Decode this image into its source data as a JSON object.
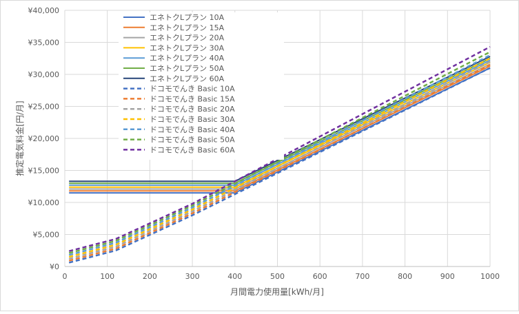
{
  "chart_data": {
    "type": "line",
    "xlabel": "月間電力使用量[kWh/月]",
    "ylabel": "推定電気料金[円/月]",
    "xlim": [
      0,
      1000
    ],
    "ylim": [
      0,
      40000
    ],
    "x_ticks": [
      "0",
      "100",
      "200",
      "300",
      "400",
      "500",
      "600",
      "700",
      "800",
      "900",
      "1000"
    ],
    "y_ticks": [
      "¥0",
      "¥5,000",
      "¥10,000",
      "¥15,000",
      "¥20,000",
      "¥25,000",
      "¥30,000",
      "¥35,000",
      "¥40,000"
    ],
    "grid": true,
    "legend_position": "top-left",
    "series": [
      {
        "name": "エネトクLプラン 10A",
        "color": "#4472C4",
        "dash": false,
        "x": [
          10,
          400,
          1000
        ],
        "values": [
          11500,
          11500,
          31000
        ]
      },
      {
        "name": "エネトクLプラン 15A",
        "color": "#ED7D31",
        "dash": false,
        "x": [
          10,
          400,
          1000
        ],
        "values": [
          11800,
          11800,
          31300
        ]
      },
      {
        "name": "エネトクLプラン 20A",
        "color": "#A5A5A5",
        "dash": false,
        "x": [
          10,
          400,
          1000
        ],
        "values": [
          12100,
          12100,
          31600
        ]
      },
      {
        "name": "エネトクLプラン 30A",
        "color": "#FFC000",
        "dash": false,
        "x": [
          10,
          400,
          1000
        ],
        "values": [
          12400,
          12400,
          31900
        ]
      },
      {
        "name": "エネトクLプラン 40A",
        "color": "#5B9BD5",
        "dash": false,
        "x": [
          10,
          400,
          1000
        ],
        "values": [
          12700,
          12700,
          32200
        ]
      },
      {
        "name": "エネトクLプラン 50A",
        "color": "#70AD47",
        "dash": false,
        "x": [
          10,
          400,
          1000
        ],
        "values": [
          13000,
          13000,
          32500
        ]
      },
      {
        "name": "エネトクLプラン 60A",
        "color": "#264478",
        "dash": false,
        "x": [
          10,
          400,
          1000
        ],
        "values": [
          13300,
          13300,
          32800
        ]
      },
      {
        "name": "ドコモでんき Basic 10A",
        "color": "#4472C4",
        "dash": true,
        "x": [
          10,
          120,
          300,
          1000
        ],
        "values": [
          600,
          2500,
          8000,
          31000
        ]
      },
      {
        "name": "ドコモでんき Basic 15A",
        "color": "#ED7D31",
        "dash": true,
        "x": [
          10,
          120,
          300,
          1000
        ],
        "values": [
          900,
          2800,
          8300,
          31500
        ]
      },
      {
        "name": "ドコモでんき Basic 20A",
        "color": "#A5A5A5",
        "dash": true,
        "x": [
          10,
          120,
          300,
          1000
        ],
        "values": [
          1200,
          3100,
          8600,
          32000
        ]
      },
      {
        "name": "ドコモでんき Basic 30A",
        "color": "#FFC000",
        "dash": true,
        "x": [
          10,
          120,
          300,
          1000
        ],
        "values": [
          1500,
          3400,
          8900,
          32500
        ]
      },
      {
        "name": "ドコモでんき Basic 40A",
        "color": "#5B9BD5",
        "dash": true,
        "x": [
          10,
          120,
          300,
          1000
        ],
        "values": [
          1800,
          3700,
          9200,
          33000
        ]
      },
      {
        "name": "ドコモでんき Basic 50A",
        "color": "#70AD47",
        "dash": true,
        "x": [
          10,
          120,
          300,
          1000
        ],
        "values": [
          2100,
          4000,
          9500,
          33500
        ]
      },
      {
        "name": "ドコモでんき Basic 60A",
        "color": "#7030A0",
        "dash": true,
        "x": [
          10,
          120,
          300,
          1000
        ],
        "values": [
          2400,
          4300,
          9800,
          34300
        ]
      }
    ]
  }
}
